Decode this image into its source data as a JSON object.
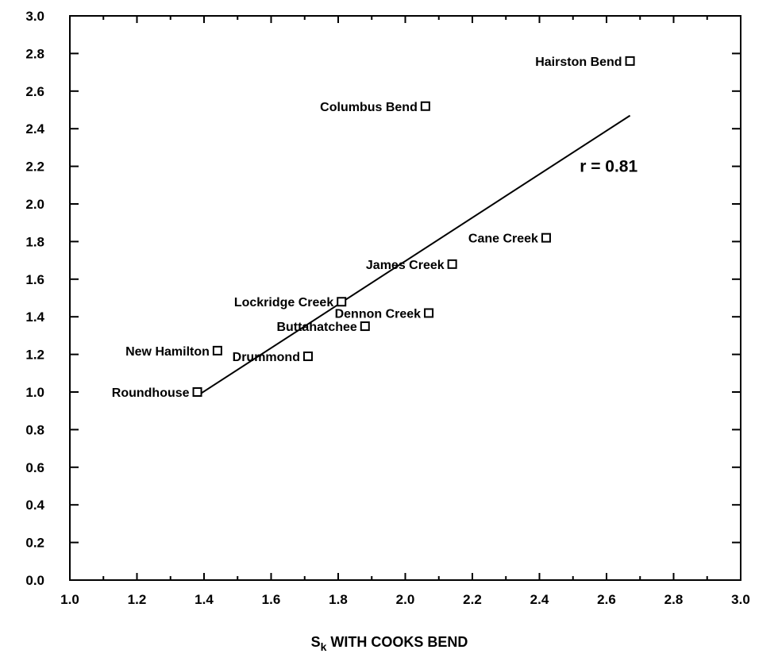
{
  "chart_data": {
    "type": "scatter",
    "title": "",
    "xlabel_main": "S",
    "xlabel_sub": "k",
    "xlabel_rest": " WITH COOKS BEND",
    "ylabel": "",
    "xlim": [
      1.0,
      3.0
    ],
    "ylim": [
      0.0,
      3.0
    ],
    "x_ticks": [
      1.0,
      1.2,
      1.4,
      1.6,
      1.8,
      2.0,
      2.2,
      2.4,
      2.6,
      2.8,
      3.0
    ],
    "x_tick_labels": [
      "1.0",
      "1.2",
      "1.4",
      "1.6",
      "1.8",
      "2.0",
      "2.2",
      "2.4",
      "2.6",
      "2.8",
      "3.0"
    ],
    "y_ticks": [
      0.0,
      0.2,
      0.4,
      0.6,
      0.8,
      1.0,
      1.2,
      1.4,
      1.6,
      1.8,
      2.0,
      2.2,
      2.4,
      2.6,
      2.8,
      3.0
    ],
    "y_tick_labels": [
      "0.0",
      "0.2",
      "0.4",
      "0.6",
      "0.8",
      "1.0",
      "1.2",
      "1.4",
      "1.6",
      "1.8",
      "2.0",
      "2.2",
      "2.4",
      "2.6",
      "2.8",
      "3.0"
    ],
    "grid": false,
    "marker": "open-square",
    "points": [
      {
        "label": "Hairston Bend",
        "x": 2.67,
        "y": 2.76
      },
      {
        "label": "Columbus Bend",
        "x": 2.06,
        "y": 2.52
      },
      {
        "label": "Cane Creek",
        "x": 2.42,
        "y": 1.82
      },
      {
        "label": "James Creek",
        "x": 2.14,
        "y": 1.68
      },
      {
        "label": "Lockridge Creek",
        "x": 1.81,
        "y": 1.48
      },
      {
        "label": "Dennon Creek",
        "x": 2.07,
        "y": 1.42
      },
      {
        "label": "Buttahatchee",
        "x": 1.88,
        "y": 1.35
      },
      {
        "label": "New Hamilton",
        "x": 1.44,
        "y": 1.22
      },
      {
        "label": "Drummond",
        "x": 1.71,
        "y": 1.19
      },
      {
        "label": "Roundhouse",
        "x": 1.38,
        "y": 1.0
      }
    ],
    "fit_line": {
      "x": [
        1.38,
        2.67
      ],
      "y": [
        0.98,
        2.47
      ]
    },
    "annotations": [
      {
        "text": "r = 0.81",
        "x": 2.52,
        "y": 2.2
      }
    ]
  }
}
